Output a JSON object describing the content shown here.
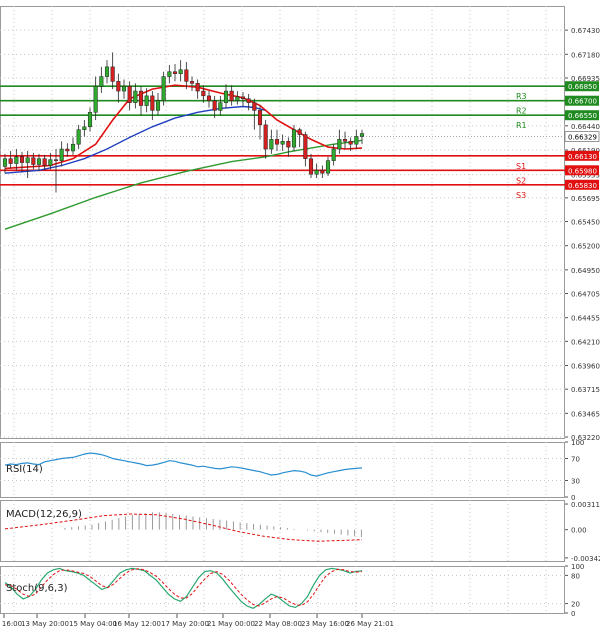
{
  "chart_data": {
    "type": "candlestick",
    "instrument": "",
    "main_panel": {
      "y_ticks": [
        "0.67430",
        "0.67180",
        "0.66935",
        "0.66440",
        "0.66190",
        "0.65935",
        "0.65695",
        "0.65450",
        "0.65200",
        "0.64950",
        "0.64705",
        "0.64455",
        "0.64210",
        "0.63960",
        "0.63715",
        "0.63465",
        "0.63220"
      ],
      "ylim": [
        0.6321,
        0.6768
      ],
      "price_tag": "0.66329",
      "price_value": 0.66329,
      "levels": [
        {
          "label": "R3",
          "value": 0.6685,
          "tag": "0.66850",
          "color": "#1f8a1f"
        },
        {
          "label": "R2",
          "value": 0.667,
          "tag": "0.66700",
          "color": "#1f8a1f"
        },
        {
          "label": "R1",
          "value": 0.6655,
          "tag": "0.66550",
          "color": "#1f8a1f"
        },
        {
          "label": "S1",
          "value": 0.6613,
          "tag": "0.66130",
          "color": "#e01010"
        },
        {
          "label": "S2",
          "value": 0.6598,
          "tag": "0.65980",
          "color": "#e01010"
        },
        {
          "label": "S3",
          "value": 0.6583,
          "tag": "0.65830",
          "color": "#e01010"
        }
      ],
      "candles": [
        [
          0.6602,
          0.661,
          0.6595,
          0.6615
        ],
        [
          0.661,
          0.6605,
          0.66,
          0.6618
        ],
        [
          0.6605,
          0.6612,
          0.6598,
          0.662
        ],
        [
          0.6612,
          0.6606,
          0.6596,
          0.6617
        ],
        [
          0.6606,
          0.6611,
          0.659,
          0.6618
        ],
        [
          0.6611,
          0.6604,
          0.6599,
          0.6616
        ],
        [
          0.6604,
          0.661,
          0.6597,
          0.6615
        ],
        [
          0.661,
          0.6603,
          0.6598,
          0.6614
        ],
        [
          0.6603,
          0.6609,
          0.6599,
          0.6616
        ],
        [
          0.6609,
          0.6608,
          0.6575,
          0.662
        ],
        [
          0.6608,
          0.662,
          0.6602,
          0.6628
        ],
        [
          0.662,
          0.6618,
          0.6612,
          0.6626
        ],
        [
          0.6618,
          0.6625,
          0.6614,
          0.6632
        ],
        [
          0.6625,
          0.664,
          0.662,
          0.6645
        ],
        [
          0.664,
          0.6643,
          0.6633,
          0.665
        ],
        [
          0.6643,
          0.6658,
          0.6638,
          0.6663
        ],
        [
          0.6658,
          0.6685,
          0.665,
          0.6695
        ],
        [
          0.6685,
          0.6695,
          0.6678,
          0.6705
        ],
        [
          0.6695,
          0.6705,
          0.6688,
          0.6712
        ],
        [
          0.6705,
          0.669,
          0.6682,
          0.672
        ],
        [
          0.669,
          0.668,
          0.6668,
          0.6698
        ],
        [
          0.668,
          0.6685,
          0.6672,
          0.6692
        ],
        [
          0.6685,
          0.6668,
          0.666,
          0.669
        ],
        [
          0.6668,
          0.668,
          0.6662,
          0.6688
        ],
        [
          0.668,
          0.6665,
          0.6655,
          0.6685
        ],
        [
          0.6665,
          0.6675,
          0.6658,
          0.6683
        ],
        [
          0.6675,
          0.666,
          0.665,
          0.668
        ],
        [
          0.666,
          0.667,
          0.6655,
          0.6678
        ],
        [
          0.667,
          0.6695,
          0.6665,
          0.67
        ],
        [
          0.6695,
          0.67,
          0.6688,
          0.6707
        ],
        [
          0.67,
          0.6698,
          0.669,
          0.6708
        ],
        [
          0.6698,
          0.6702,
          0.669,
          0.6712
        ],
        [
          0.6702,
          0.669,
          0.6682,
          0.671
        ],
        [
          0.669,
          0.6688,
          0.668,
          0.6695
        ],
        [
          0.6688,
          0.668,
          0.6672,
          0.6692
        ],
        [
          0.668,
          0.6675,
          0.6668,
          0.6686
        ],
        [
          0.6675,
          0.667,
          0.6663,
          0.668
        ],
        [
          0.667,
          0.666,
          0.6652,
          0.6675
        ],
        [
          0.666,
          0.6668,
          0.6655,
          0.6675
        ],
        [
          0.6668,
          0.668,
          0.6662,
          0.6687
        ],
        [
          0.668,
          0.667,
          0.6665,
          0.6686
        ],
        [
          0.667,
          0.6674,
          0.6666,
          0.668
        ],
        [
          0.6674,
          0.6672,
          0.6664,
          0.6679
        ],
        [
          0.6672,
          0.6668,
          0.666,
          0.6677
        ],
        [
          0.6668,
          0.666,
          0.664,
          0.6672
        ],
        [
          0.666,
          0.6645,
          0.663,
          0.6665
        ],
        [
          0.6645,
          0.662,
          0.661,
          0.665
        ],
        [
          0.662,
          0.663,
          0.6615,
          0.664
        ],
        [
          0.663,
          0.6625,
          0.6618,
          0.664
        ],
        [
          0.6625,
          0.6628,
          0.6618,
          0.6635
        ],
        [
          0.6628,
          0.6622,
          0.6612,
          0.6632
        ],
        [
          0.6622,
          0.664,
          0.6618,
          0.6645
        ],
        [
          0.664,
          0.6635,
          0.6622,
          0.6642
        ],
        [
          0.6635,
          0.661,
          0.6602,
          0.6638
        ],
        [
          0.661,
          0.6594,
          0.659,
          0.6615
        ],
        [
          0.6594,
          0.6598,
          0.659,
          0.6605
        ],
        [
          0.6598,
          0.6595,
          0.659,
          0.6603
        ],
        [
          0.6595,
          0.6608,
          0.6592,
          0.6612
        ],
        [
          0.6608,
          0.662,
          0.6603,
          0.6625
        ],
        [
          0.662,
          0.663,
          0.6615,
          0.664
        ],
        [
          0.663,
          0.6628,
          0.662,
          0.6638
        ],
        [
          0.6628,
          0.6625,
          0.6618,
          0.6632
        ],
        [
          0.6625,
          0.6633,
          0.662,
          0.664
        ],
        [
          0.6633,
          0.6636,
          0.6625,
          0.664
        ]
      ],
      "ma_fast_color": "#e01010",
      "ma_fast": [
        [
          0,
          0.66
        ],
        [
          8,
          0.6603
        ],
        [
          12,
          0.661
        ],
        [
          16,
          0.6625
        ],
        [
          19,
          0.665
        ],
        [
          22,
          0.6672
        ],
        [
          26,
          0.6682
        ],
        [
          30,
          0.6686
        ],
        [
          34,
          0.6684
        ],
        [
          38,
          0.6678
        ],
        [
          42,
          0.6673
        ],
        [
          45,
          0.6665
        ],
        [
          48,
          0.665
        ],
        [
          51,
          0.664
        ],
        [
          54,
          0.663
        ],
        [
          57,
          0.6622
        ],
        [
          60,
          0.662
        ],
        [
          63,
          0.6621
        ]
      ],
      "ma_mid_color": "#2040c0",
      "ma_mid": [
        [
          0,
          0.6595
        ],
        [
          6,
          0.6598
        ],
        [
          10,
          0.6603
        ],
        [
          14,
          0.661
        ],
        [
          18,
          0.662
        ],
        [
          22,
          0.6632
        ],
        [
          26,
          0.6643
        ],
        [
          30,
          0.6652
        ],
        [
          34,
          0.6658
        ],
        [
          38,
          0.6662
        ],
        [
          42,
          0.6664
        ],
        [
          44,
          0.6663
        ],
        [
          46,
          0.666
        ]
      ],
      "ma_slow_color": "#2f9a2f",
      "ma_slow": [
        [
          0,
          0.6537
        ],
        [
          8,
          0.6553
        ],
        [
          16,
          0.657
        ],
        [
          24,
          0.6585
        ],
        [
          32,
          0.6597
        ],
        [
          40,
          0.6607
        ],
        [
          46,
          0.6612
        ],
        [
          50,
          0.6617
        ],
        [
          54,
          0.6621
        ],
        [
          58,
          0.6625
        ],
        [
          62,
          0.6628
        ],
        [
          63,
          0.6629
        ]
      ]
    },
    "rsi_panel": {
      "label": "RSI(14)",
      "y_ticks": [
        "100",
        "70",
        "30",
        "0"
      ],
      "ylim": [
        0,
        100
      ],
      "color": "#2a8fd0",
      "values": [
        58,
        60,
        59,
        61,
        62,
        60,
        59,
        64,
        66,
        68,
        70,
        71,
        72,
        75,
        78,
        80,
        79,
        77,
        74,
        70,
        68,
        66,
        64,
        62,
        60,
        57,
        58,
        60,
        63,
        66,
        65,
        62,
        60,
        58,
        55,
        56,
        54,
        52,
        51,
        53,
        55,
        54,
        52,
        50,
        48,
        46,
        43,
        40,
        41,
        44,
        46,
        48,
        47,
        45,
        40,
        38,
        41,
        44,
        46,
        48,
        50,
        51,
        52,
        53
      ]
    },
    "macd_panel": {
      "label": "MACD(12,26,9)",
      "y_ticks": [
        "0.00311",
        "0.00",
        "-0.003426"
      ],
      "ylim": [
        -0.0038,
        0.0036
      ],
      "hist_color": "#8f8f8f",
      "signal_color": "#e01010",
      "histogram": [
        0.0002,
        0.0003,
        0.0004,
        0.0005,
        0.0006,
        0.0008,
        0.001,
        0.0012,
        0.0014,
        0.0016,
        0.0018,
        0.0019,
        0.002,
        0.0021,
        0.0021,
        0.002,
        0.0019,
        0.0018,
        0.0017,
        0.0016,
        0.0015,
        0.0014,
        0.0013,
        0.0012,
        0.0011,
        0.001,
        0.0009,
        0.0008,
        0.0007,
        0.0006,
        0.0005,
        0.0004,
        0.0003,
        0.0002,
        0.0001,
        0.0,
        -0.0001,
        -0.0002,
        -0.0003,
        -0.0004,
        -0.0005,
        -0.0006,
        -0.0007,
        -0.0008,
        -0.0009,
        -0.001,
        -0.0011,
        -0.0012,
        -0.0012,
        -0.0012,
        -0.0011,
        -0.001,
        -0.0009,
        -0.0008
      ],
      "signal": [
        [
          0,
          0.0001
        ],
        [
          8,
          0.0006
        ],
        [
          16,
          0.0012
        ],
        [
          22,
          0.0017
        ],
        [
          28,
          0.0019
        ],
        [
          34,
          0.0018
        ],
        [
          40,
          0.0013
        ],
        [
          46,
          0.0006
        ],
        [
          52,
          -0.0002
        ],
        [
          58,
          -0.0008
        ],
        [
          64,
          -0.0012
        ],
        [
          70,
          -0.0014
        ],
        [
          76,
          -0.0013
        ],
        [
          80,
          -0.0012
        ]
      ]
    },
    "stoch_panel": {
      "label": "Stoch(9,6,3)",
      "y_ticks": [
        "100",
        "80",
        "20",
        "0"
      ],
      "ylim": [
        0,
        100
      ],
      "k_color": "#2aa870",
      "d_color": "#e01010",
      "k": [
        65,
        55,
        40,
        30,
        35,
        50,
        70,
        85,
        92,
        95,
        90,
        88,
        85,
        80,
        70,
        60,
        50,
        55,
        70,
        85,
        92,
        95,
        93,
        90,
        80,
        70,
        55,
        40,
        30,
        25,
        35,
        55,
        75,
        88,
        90,
        85,
        72,
        55,
        40,
        25,
        15,
        10,
        18,
        30,
        40,
        35,
        25,
        15,
        12,
        20,
        35,
        60,
        80,
        92,
        95,
        93,
        90,
        85,
        88,
        90
      ],
      "d": [
        60,
        58,
        50,
        40,
        35,
        40,
        55,
        70,
        82,
        90,
        92,
        90,
        87,
        84,
        78,
        68,
        58,
        54,
        62,
        74,
        85,
        92,
        94,
        92,
        86,
        78,
        66,
        52,
        40,
        32,
        32,
        42,
        58,
        72,
        84,
        88,
        82,
        70,
        55,
        40,
        28,
        18,
        15,
        22,
        30,
        35,
        32,
        24,
        18,
        16,
        24,
        40,
        60,
        78,
        88,
        93,
        92,
        88,
        87,
        88
      ]
    },
    "x_ticks": [
      "16:00",
      "13 May 20:00",
      "15 May 04:00",
      "16 May 12:00",
      "17 May 20:00",
      "21 May 00:00",
      "22 May 08:00",
      "23 May 16:00",
      "26 May 21:01"
    ]
  }
}
